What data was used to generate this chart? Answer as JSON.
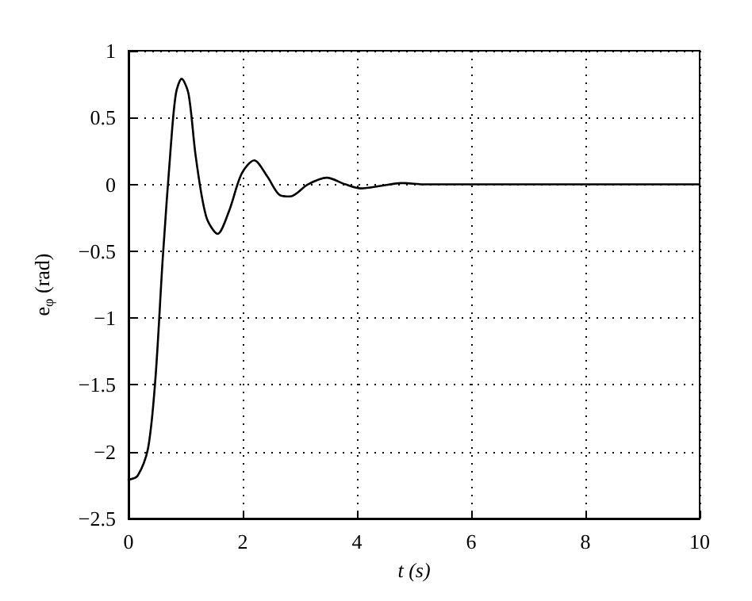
{
  "chart_data": {
    "type": "line",
    "xlabel": "t (s)",
    "ylabel": "e$_{φ}$ (rad)",
    "x": [
      0,
      0.16,
      0.34,
      0.47,
      0.6,
      0.74,
      0.83,
      0.93,
      1.05,
      1.18,
      1.36,
      1.56,
      1.76,
      1.98,
      2.2,
      2.43,
      2.65,
      2.83,
      3.14,
      3.47,
      3.8,
      4.07,
      4.43,
      4.78,
      5.2,
      6,
      7,
      8,
      9,
      10
    ],
    "series": [
      {
        "color": "#000000",
        "values": [
          -2.21,
          -2.18,
          -1.98,
          -1.46,
          -0.55,
          0.28,
          0.68,
          0.79,
          0.68,
          0.2,
          -0.24,
          -0.37,
          -0.2,
          0.08,
          0.18,
          0.06,
          -0.08,
          -0.09,
          0,
          0.05,
          0,
          -0.03,
          -0.01,
          0.01,
          0,
          0,
          0,
          0,
          0,
          0
        ]
      }
    ],
    "xlim": [
      0,
      10
    ],
    "xticks": [
      0,
      2,
      4,
      6,
      8,
      10
    ],
    "ylim": [
      -2.5,
      1
    ],
    "yticks": [
      -2.5,
      -2,
      -1.5,
      -1,
      -0.5,
      0,
      0.5,
      1
    ],
    "grid": true,
    "line_style": "solid",
    "marker": "none"
  }
}
